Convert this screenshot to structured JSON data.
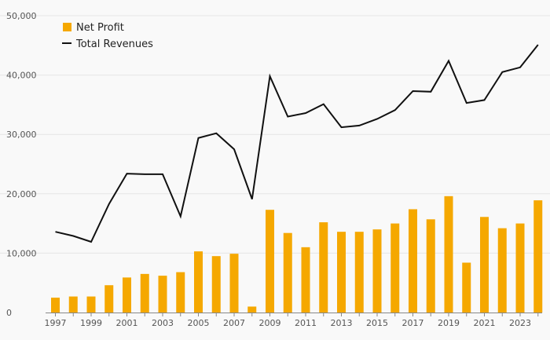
{
  "chart_data": {
    "type": "bar",
    "title": "",
    "xlabel": "",
    "ylabel": "",
    "ylim": [
      0,
      50000
    ],
    "yticks": [
      0,
      10000,
      20000,
      30000,
      40000,
      50000
    ],
    "ytick_labels": [
      "0",
      "10,000",
      "20,000",
      "30,000",
      "40,000",
      "50,000"
    ],
    "categories": [
      "1997",
      "1998",
      "1999",
      "2000",
      "2001",
      "2002",
      "2003",
      "2004",
      "2005",
      "2006",
      "2007",
      "2008",
      "2009",
      "2010",
      "2011",
      "2012",
      "2013",
      "2014",
      "2015",
      "2016",
      "2017",
      "2018",
      "2019",
      "2020",
      "2021",
      "2022",
      "2023",
      "2024"
    ],
    "xtick_labels": [
      "1997",
      "1999",
      "2001",
      "2003",
      "2005",
      "2007",
      "2009",
      "2011",
      "2013",
      "2015",
      "2017",
      "2019",
      "2021",
      "2023"
    ],
    "series": [
      {
        "name": "Net Profit",
        "kind": "bar",
        "color": "#f5a800",
        "values": [
          2500,
          2700,
          2700,
          4600,
          5900,
          6500,
          6200,
          6800,
          10300,
          9500,
          9900,
          1000,
          17300,
          13400,
          11000,
          15200,
          13600,
          13600,
          14000,
          15000,
          17400,
          15700,
          19600,
          8400,
          16100,
          14200,
          15000,
          18900
        ]
      },
      {
        "name": "Total Revenues",
        "kind": "line",
        "color": "#111111",
        "values": [
          13600,
          12900,
          11900,
          18300,
          23400,
          23300,
          23300,
          16200,
          29400,
          30200,
          27500,
          19100,
          39800,
          33000,
          33600,
          35100,
          31200,
          31500,
          32600,
          34100,
          37300,
          37200,
          42400,
          35300,
          35800,
          40500,
          41300,
          45100
        ]
      }
    ],
    "legend": {
      "position": "top-left"
    },
    "grid": true
  }
}
